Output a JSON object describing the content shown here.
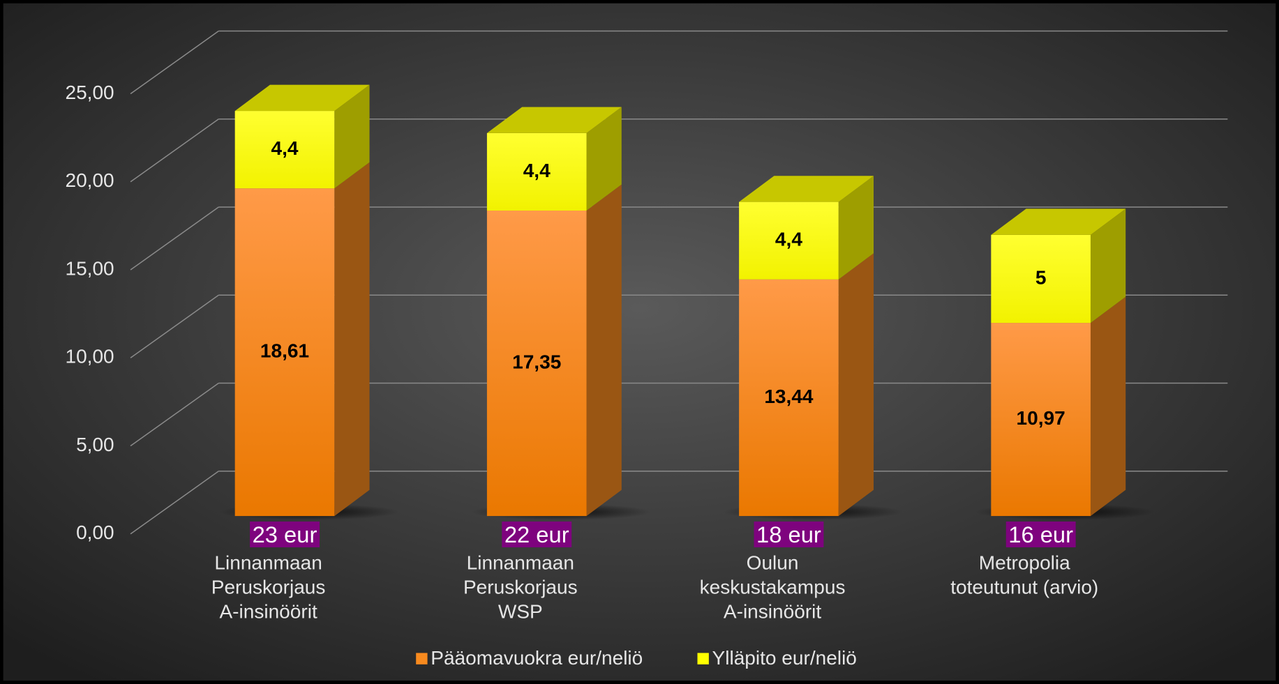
{
  "chart_data": {
    "type": "bar3d_stacked",
    "categories": [
      [
        "Linnanmaan",
        "Peruskorjaus",
        "A-insinöörit"
      ],
      [
        "Linnanmaan",
        "Peruskorjaus",
        "WSP"
      ],
      [
        "Oulun",
        "keskustakampus",
        "A-insinöörit"
      ],
      [
        "Metropolia",
        "toteutunut (arvio)"
      ]
    ],
    "annotations": [
      "23 eur",
      "22 eur",
      "18 eur",
      "16 eur"
    ],
    "series": [
      {
        "name": "Pääomavuokra eur/neliö",
        "color": "#f88a1e",
        "values": [
          18.61,
          17.35,
          13.44,
          10.97
        ],
        "value_labels": [
          "18,61",
          "17,35",
          "13,44",
          "10,97"
        ]
      },
      {
        "name": "Ylläpito eur/neliö",
        "color": "#ffff00",
        "values": [
          4.4,
          4.4,
          4.4,
          5
        ],
        "value_labels": [
          "4,4",
          "4,4",
          "4,4",
          "5"
        ]
      }
    ],
    "ylim": [
      0,
      25
    ],
    "yticks": [
      {
        "value": 0,
        "label": "0,00"
      },
      {
        "value": 5,
        "label": "5,00"
      },
      {
        "value": 10,
        "label": "10,00"
      },
      {
        "value": 15,
        "label": "15,00"
      },
      {
        "value": 20,
        "label": "20,00"
      },
      {
        "value": 25,
        "label": "25,00"
      }
    ],
    "grid": true,
    "legend": "bottom"
  }
}
